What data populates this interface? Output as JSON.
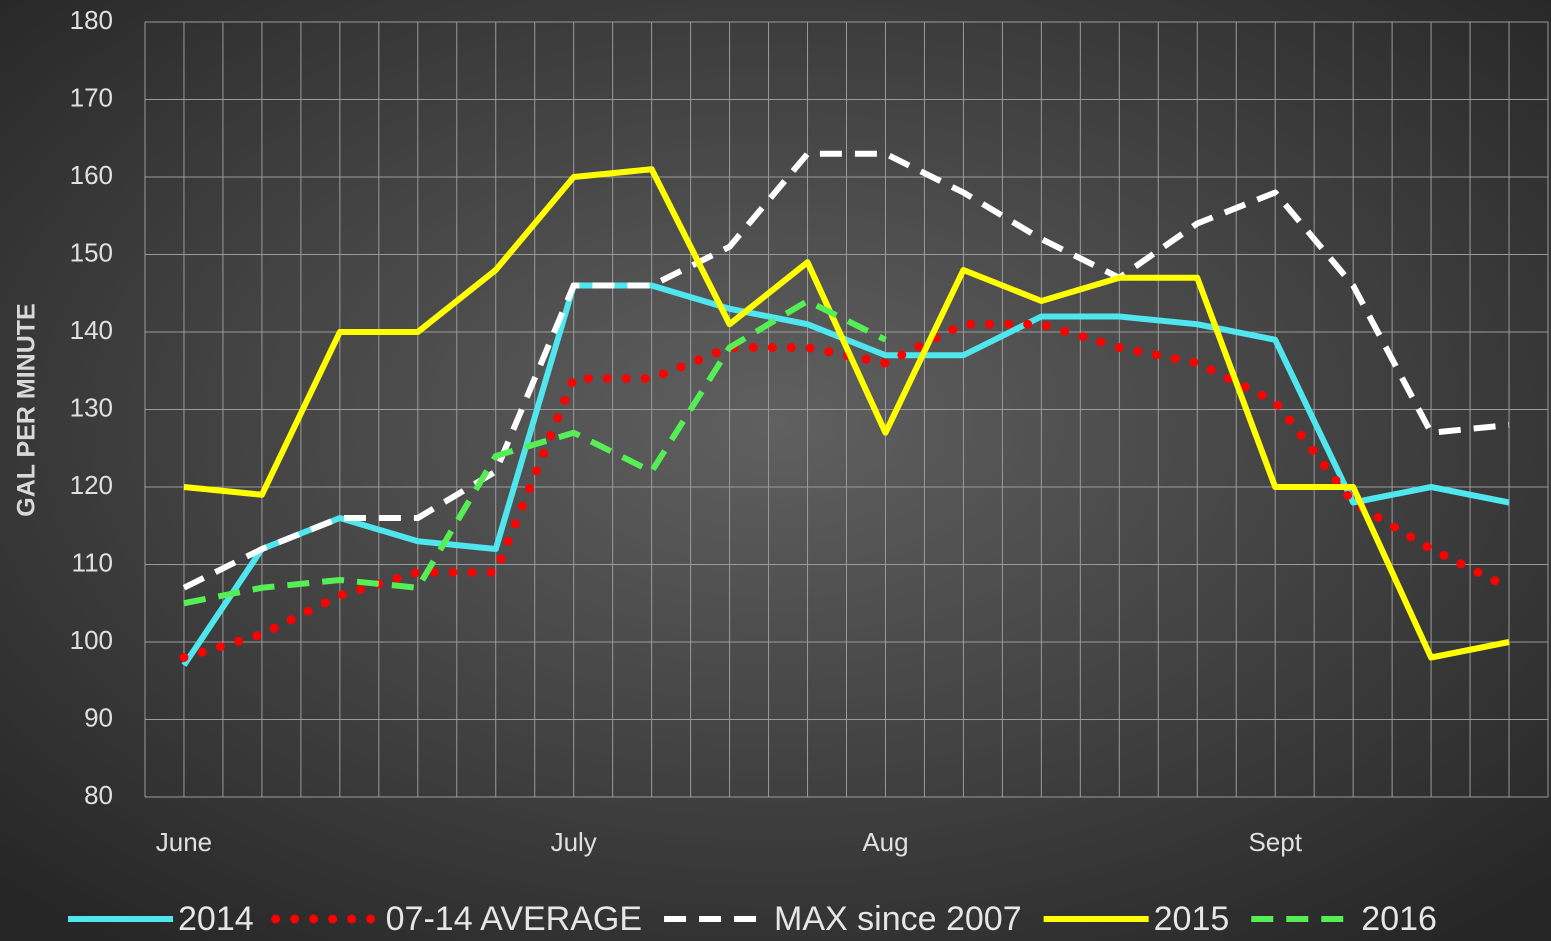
{
  "chart_data": {
    "type": "line",
    "ylabel": "GAL PER MINUTE",
    "categories": [
      "June",
      null,
      null,
      null,
      null,
      "July",
      null,
      null,
      null,
      "Aug",
      null,
      null,
      null,
      null,
      "Sept",
      null,
      null,
      null
    ],
    "ylim": [
      80,
      180
    ],
    "yticks": [
      80,
      90,
      100,
      110,
      120,
      130,
      140,
      150,
      160,
      170,
      180
    ],
    "grid": true,
    "legend": "bottom",
    "series": [
      {
        "name": "2014",
        "color": "#4fe6ee",
        "line_style": "solid",
        "values": [
          97,
          112,
          116,
          113,
          112,
          146,
          146,
          143,
          141,
          137,
          137,
          142,
          142,
          141,
          139,
          118,
          120,
          118
        ]
      },
      {
        "name": "07-14 AVERAGE",
        "color": "#ff0000",
        "line_style": "dotted",
        "values": [
          98,
          101,
          106,
          109,
          109,
          134,
          134,
          138,
          138,
          136,
          141,
          141,
          138,
          136,
          131,
          118,
          112,
          107
        ]
      },
      {
        "name": "MAX since 2007",
        "color": "#ffffff",
        "line_style": "dashed",
        "values": [
          107,
          112,
          116,
          116,
          122,
          146,
          146,
          151,
          163,
          163,
          158,
          152,
          147,
          154,
          158,
          146,
          127,
          128
        ]
      },
      {
        "name": "2015",
        "color": "#ffff00",
        "line_style": "solid",
        "values": [
          120,
          119,
          140,
          140,
          148,
          160,
          161,
          141,
          149,
          127,
          148,
          144,
          147,
          147,
          120,
          120,
          98,
          100
        ]
      },
      {
        "name": "2016",
        "color": "#55ee55",
        "line_style": "dashed",
        "values": [
          105,
          107,
          108,
          107,
          124,
          127,
          122,
          138,
          144,
          139,
          null,
          null,
          null,
          null,
          null,
          null,
          null,
          null
        ]
      }
    ]
  }
}
